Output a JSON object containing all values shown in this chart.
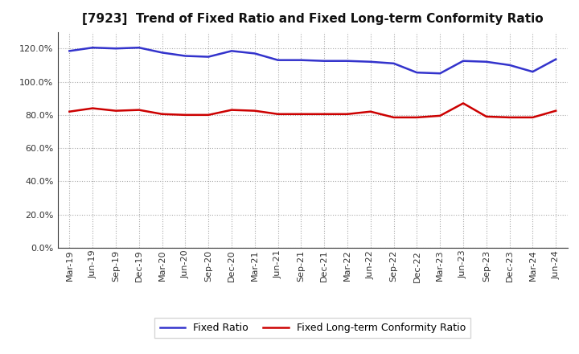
{
  "title": "[7923]  Trend of Fixed Ratio and Fixed Long-term Conformity Ratio",
  "labels": [
    "Mar-19",
    "Jun-19",
    "Sep-19",
    "Dec-19",
    "Mar-20",
    "Jun-20",
    "Sep-20",
    "Dec-20",
    "Mar-21",
    "Jun-21",
    "Sep-21",
    "Dec-21",
    "Mar-22",
    "Jun-22",
    "Sep-22",
    "Dec-22",
    "Mar-23",
    "Jun-23",
    "Sep-23",
    "Dec-23",
    "Mar-24",
    "Jun-24"
  ],
  "fixed_ratio": [
    118.5,
    120.5,
    120.0,
    120.5,
    117.5,
    115.5,
    115.0,
    118.5,
    117.0,
    113.0,
    113.0,
    112.5,
    112.5,
    112.0,
    111.0,
    105.5,
    105.0,
    112.5,
    112.0,
    110.0,
    106.0,
    113.5
  ],
  "fixed_lt_ratio": [
    82.0,
    84.0,
    82.5,
    83.0,
    80.5,
    80.0,
    80.0,
    83.0,
    82.5,
    80.5,
    80.5,
    80.5,
    80.5,
    82.0,
    78.5,
    78.5,
    79.5,
    87.0,
    79.0,
    78.5,
    78.5,
    82.5
  ],
  "blue_color": "#3333cc",
  "red_color": "#cc0000",
  "ylim_min": 0,
  "ylim_max": 130,
  "ytick_values": [
    0,
    20,
    40,
    60,
    80,
    100,
    120
  ],
  "legend_fixed_ratio": "Fixed Ratio",
  "legend_fixed_lt_ratio": "Fixed Long-term Conformity Ratio",
  "bg_color": "#ffffff",
  "grid_color": "#aaaaaa",
  "title_fontsize": 11,
  "axis_label_fontsize": 8,
  "legend_fontsize": 9
}
